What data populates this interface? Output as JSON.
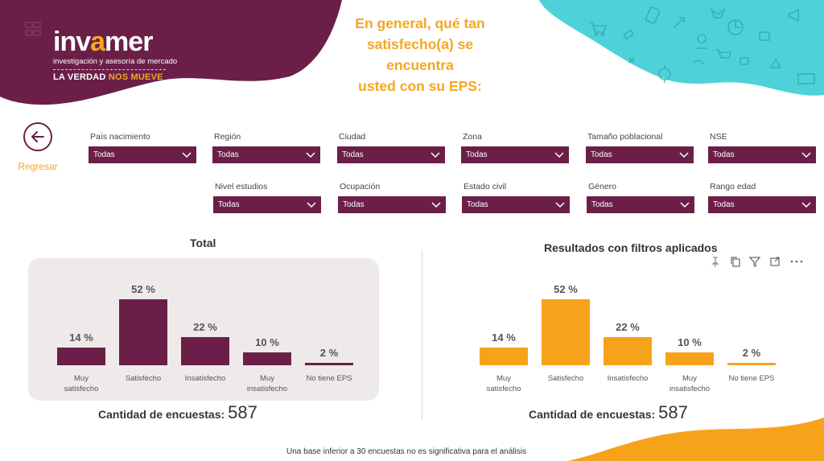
{
  "brand": {
    "name_part1": "inv",
    "name_part2": "a",
    "name_part3": "mer",
    "subtitle": "investigación y asesoría de mercado",
    "tagline_part1": "LA VERDAD",
    "tagline_part2": "NOS MUEVE"
  },
  "page_title": {
    "line1": "En general, qué tan",
    "line2": "satisfecho(a) se encuentra",
    "line3": "usted con su EPS:"
  },
  "back": {
    "label": "Regresar",
    "icon": "arrow-left-icon"
  },
  "filters": [
    {
      "label": "País nacimiento",
      "value": "Todas"
    },
    {
      "label": "Región",
      "value": "Todas"
    },
    {
      "label": "Ciudad",
      "value": "Todas"
    },
    {
      "label": "Zona",
      "value": "Todas"
    },
    {
      "label": "Tamaño poblacional",
      "value": "Todas"
    },
    {
      "label": "NSE",
      "value": "Todas"
    },
    {
      "label": "Nivel estudios",
      "value": "Todas"
    },
    {
      "label": "Ocupación",
      "value": "Todas"
    },
    {
      "label": "Estado civil",
      "value": "Todas"
    },
    {
      "label": "Género",
      "value": "Todas"
    },
    {
      "label": "Rango edad",
      "value": "Todas"
    }
  ],
  "visual_toolbar": [
    "pin-icon",
    "copy-icon",
    "filter-icon",
    "focus-icon",
    "more-icon"
  ],
  "colors": {
    "plum": "#6b1f48",
    "orange": "#f7a21b",
    "teal": "#4fd1d9",
    "gray_panel": "#edeae9"
  },
  "chart_data": [
    {
      "type": "bar",
      "title": "Total",
      "categories": [
        "Muy satisfecho",
        "Satisfecho",
        "Insatisfecho",
        "Muy insatisfecho",
        "No tiene EPS"
      ],
      "category_lines": [
        [
          "Muy",
          "satisfecho"
        ],
        [
          "Satisfecho"
        ],
        [
          "Insatisfecho"
        ],
        [
          "Muy",
          "insatisfecho"
        ],
        [
          "No tiene EPS"
        ]
      ],
      "values": [
        14,
        52,
        22,
        10,
        2
      ],
      "value_labels": [
        "14 %",
        "52 %",
        "22 %",
        "10 %",
        "2 %"
      ],
      "ylim": [
        0,
        52
      ],
      "color": "#6b1f48",
      "count_label": "Cantidad de encuestas:",
      "count_value": "587"
    },
    {
      "type": "bar",
      "title": "Resultados con filtros aplicados",
      "categories": [
        "Muy satisfecho",
        "Satisfecho",
        "Insatisfecho",
        "Muy insatisfecho",
        "No tiene EPS"
      ],
      "category_lines": [
        [
          "Muy",
          "satisfecho"
        ],
        [
          "Satisfecho"
        ],
        [
          "Insatisfecho"
        ],
        [
          "Muy",
          "insatisfecho"
        ],
        [
          "No tiene EPS"
        ]
      ],
      "values": [
        14,
        52,
        22,
        10,
        2
      ],
      "value_labels": [
        "14 %",
        "52 %",
        "22 %",
        "10 %",
        "2 %"
      ],
      "ylim": [
        0,
        52
      ],
      "color": "#f7a21b",
      "count_label": "Cantidad de encuestas:",
      "count_value": "587"
    }
  ],
  "footer_note": "Una base inferior a 30 encuestas no es significativa para el análisis"
}
